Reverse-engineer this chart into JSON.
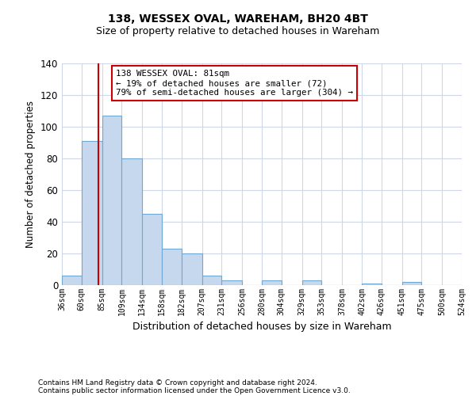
{
  "title": "138, WESSEX OVAL, WAREHAM, BH20 4BT",
  "subtitle": "Size of property relative to detached houses in Wareham",
  "all_heights": [
    6,
    91,
    107,
    80,
    45,
    23,
    20,
    6,
    3,
    0,
    3,
    0,
    3,
    0,
    0,
    1,
    0,
    2,
    0,
    0
  ],
  "bin_labels": [
    "36sqm",
    "60sqm",
    "85sqm",
    "109sqm",
    "134sqm",
    "158sqm",
    "182sqm",
    "207sqm",
    "231sqm",
    "256sqm",
    "280sqm",
    "304sqm",
    "329sqm",
    "353sqm",
    "378sqm",
    "402sqm",
    "426sqm",
    "451sqm",
    "475sqm",
    "500sqm",
    "524sqm"
  ],
  "bin_edges": [
    36,
    60,
    85,
    109,
    134,
    158,
    182,
    207,
    231,
    256,
    280,
    304,
    329,
    353,
    378,
    402,
    426,
    451,
    475,
    500,
    524
  ],
  "bar_color": "#c5d8ed",
  "bar_edge_color": "#6fa8d4",
  "vline_x": 81,
  "vline_color": "#cc0000",
  "ylabel": "Number of detached properties",
  "xlabel": "Distribution of detached houses by size in Wareham",
  "ylim": [
    0,
    140
  ],
  "yticks": [
    0,
    20,
    40,
    60,
    80,
    100,
    120,
    140
  ],
  "annotation_title": "138 WESSEX OVAL: 81sqm",
  "annotation_line1": "← 19% of detached houses are smaller (72)",
  "annotation_line2": "79% of semi-detached houses are larger (304) →",
  "annotation_box_color": "#cc0000",
  "footer_line1": "Contains HM Land Registry data © Crown copyright and database right 2024.",
  "footer_line2": "Contains public sector information licensed under the Open Government Licence v3.0.",
  "bg_color": "#ffffff",
  "grid_color": "#d0d8e8"
}
